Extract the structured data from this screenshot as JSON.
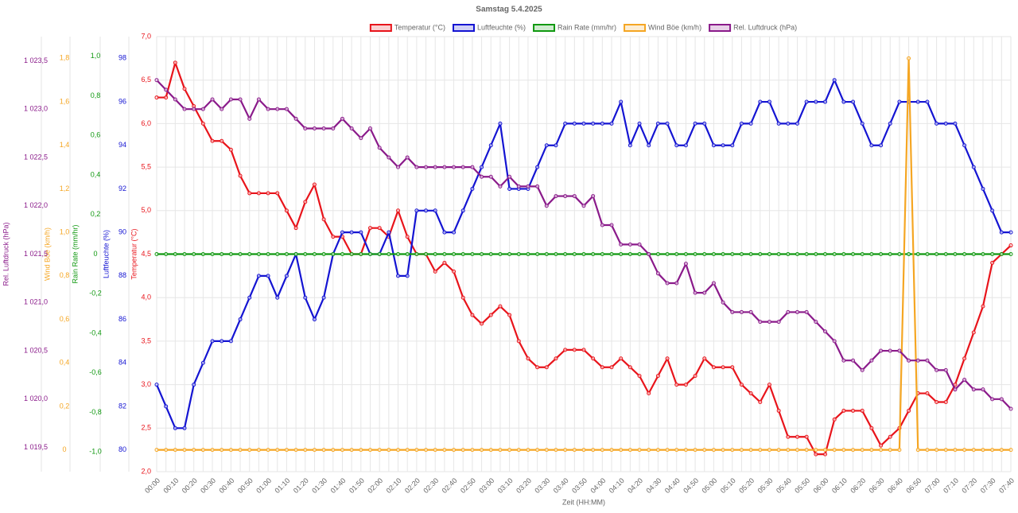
{
  "chart_data": {
    "type": "line",
    "title": "Samstag 5.4.2025",
    "xlabel": "Zeit (HH:MM)",
    "grid": true,
    "categories": [
      "00:00",
      null,
      "00:10",
      null,
      "00:20",
      null,
      "00:30",
      null,
      "00:40",
      null,
      "00:50",
      null,
      "01:00",
      null,
      "01:10",
      null,
      "01:20",
      null,
      "01:30",
      null,
      "01:40",
      null,
      "01:50",
      null,
      "02:00",
      null,
      "02:10",
      null,
      "02:20",
      null,
      "02:30",
      null,
      "02:40",
      null,
      "02:50",
      null,
      "03:00",
      null,
      "03:10",
      null,
      "03:20",
      null,
      "03:30",
      null,
      "03:40",
      null,
      "03:50",
      null,
      "04:00",
      null,
      "04:10",
      null,
      "04:20",
      null,
      "04:30",
      null,
      "04:40",
      null,
      "04:50",
      null,
      "05:00",
      null,
      "05:10",
      null,
      "05:20",
      null,
      "05:30",
      null,
      "05:40",
      null,
      "05:50",
      null,
      "06:00",
      null,
      "06:10",
      null,
      "06:20",
      null,
      "06:30",
      null,
      "06:40",
      null,
      "06:50",
      null,
      "07:00",
      null,
      "07:10",
      null,
      "07:20",
      null,
      "07:30",
      null,
      "07:40"
    ],
    "axes": [
      {
        "label": "Temperatur (°C)",
        "color": "#e8141b",
        "lim": [
          2,
          7
        ],
        "ticks": [
          {
            "value": 2,
            "label": "2,0"
          },
          {
            "value": 2.5,
            "label": "2,5"
          },
          {
            "value": 3,
            "label": "3,0"
          },
          {
            "value": 3.5,
            "label": "3,5"
          },
          {
            "value": 4,
            "label": "4,0"
          },
          {
            "value": 4.5,
            "label": "4,5"
          },
          {
            "value": 5,
            "label": "5,0"
          },
          {
            "value": 5.5,
            "label": "5,5"
          },
          {
            "value": 6,
            "label": "6,0"
          },
          {
            "value": 6.5,
            "label": "6,5"
          },
          {
            "value": 7,
            "label": "7,0"
          }
        ]
      },
      {
        "label": "Luftfeuchte (%)",
        "color": "#1414d2",
        "lim": [
          79,
          99
        ],
        "ticks": [
          80,
          82,
          84,
          86,
          88,
          90,
          92,
          94,
          96,
          98
        ]
      },
      {
        "label": "Rain Rate (mm/hr)",
        "color": "#119911",
        "lim": [
          -1.1,
          1.1
        ],
        "ticks": [
          {
            "value": -1,
            "label": "-1,0"
          },
          {
            "value": -0.8,
            "label": "-0,8"
          },
          {
            "value": -0.6,
            "label": "-0,6"
          },
          {
            "value": -0.4,
            "label": "-0,4"
          },
          {
            "value": -0.2,
            "label": "-0,2"
          },
          0,
          {
            "value": 0.2,
            "label": "0,2"
          },
          {
            "value": 0.4,
            "label": "0,4"
          },
          {
            "value": 0.6,
            "label": "0,6"
          },
          {
            "value": 0.8,
            "label": "0,8"
          },
          {
            "value": 1,
            "label": "1,0"
          }
        ]
      },
      {
        "label": "Wind Böe (km/h)",
        "color": "#f5a623",
        "lim": [
          -0.1,
          1.9
        ],
        "ticks": [
          0,
          {
            "value": 0.2,
            "label": "0,2"
          },
          {
            "value": 0.4,
            "label": "0,4"
          },
          {
            "value": 0.6,
            "label": "0,6"
          },
          {
            "value": 0.8,
            "label": "0,8"
          },
          {
            "value": 1,
            "label": "1,0"
          },
          {
            "value": 1.2,
            "label": "1,2"
          },
          {
            "value": 1.4,
            "label": "1,4"
          },
          {
            "value": 1.6,
            "label": "1,6"
          },
          {
            "value": 1.8,
            "label": "1,8"
          }
        ]
      },
      {
        "label": "Rel. Luftdruck (hPa)",
        "color": "#8a1a8a",
        "lim": [
          1019.25,
          1023.75
        ],
        "ticks": [
          {
            "value": 1019.5,
            "label": "1 019,5"
          },
          {
            "value": 1020,
            "label": "1 020,0"
          },
          {
            "value": 1020.5,
            "label": "1 020,5"
          },
          {
            "value": 1021,
            "label": "1 021,0"
          },
          {
            "value": 1021.5,
            "label": "1 021,5"
          },
          {
            "value": 1022,
            "label": "1 022,0"
          },
          {
            "value": 1022.5,
            "label": "1 022,5"
          },
          {
            "value": 1023,
            "label": "1 023,0"
          },
          {
            "value": 1023.5,
            "label": "1 023,5"
          }
        ]
      }
    ],
    "series": [
      {
        "name": "Temperatur (°C)",
        "color": "#e8141b",
        "axis": 0,
        "values": [
          6.3,
          6.3,
          6.7,
          6.4,
          6.2,
          6.0,
          5.8,
          5.8,
          5.7,
          5.4,
          5.2,
          5.2,
          5.2,
          5.2,
          5.0,
          4.8,
          5.1,
          5.3,
          4.9,
          4.7,
          4.7,
          4.5,
          4.5,
          4.8,
          4.8,
          4.7,
          5.0,
          4.7,
          4.5,
          4.5,
          4.3,
          4.4,
          4.3,
          4.0,
          3.8,
          3.7,
          3.8,
          3.9,
          3.8,
          3.5,
          3.3,
          3.2,
          3.2,
          3.3,
          3.4,
          3.4,
          3.4,
          3.3,
          3.2,
          3.2,
          3.3,
          3.2,
          3.1,
          2.9,
          3.1,
          3.3,
          3.0,
          3.0,
          3.1,
          3.3,
          3.2,
          3.2,
          3.2,
          3.0,
          2.9,
          2.8,
          3.0,
          2.7,
          2.4,
          2.4,
          2.4,
          2.2,
          2.2,
          2.6,
          2.7,
          2.7,
          2.7,
          2.5,
          2.3,
          2.4,
          2.5,
          2.7,
          2.9,
          2.9,
          2.8,
          2.8,
          3.0,
          3.3,
          3.6,
          3.9,
          4.4,
          4.5,
          4.6
        ]
      },
      {
        "name": "Luftfeuchte (%)",
        "color": "#1414d2",
        "axis": 1,
        "values": [
          83,
          82,
          81,
          81,
          83,
          84,
          85,
          85,
          85,
          86,
          87,
          88,
          88,
          87,
          88,
          89,
          87,
          86,
          87,
          89,
          90,
          90,
          90,
          89,
          89,
          90,
          88,
          88,
          91,
          91,
          91,
          90,
          90,
          91,
          92,
          93,
          94,
          95,
          92,
          92,
          92,
          93,
          94,
          94,
          95,
          95,
          95,
          95,
          95,
          95,
          96,
          94,
          95,
          94,
          95,
          95,
          94,
          94,
          95,
          95,
          94,
          94,
          94,
          95,
          95,
          96,
          96,
          95,
          95,
          95,
          96,
          96,
          96,
          97,
          96,
          96,
          95,
          94,
          94,
          95,
          96,
          96,
          96,
          96,
          95,
          95,
          95,
          94,
          93,
          92,
          91,
          90,
          90
        ]
      },
      {
        "name": "Rain Rate (mm/hr)",
        "color": "#119911",
        "axis": 2,
        "values": [
          0,
          0,
          0,
          0,
          0,
          0,
          0,
          0,
          0,
          0,
          0,
          0,
          0,
          0,
          0,
          0,
          0,
          0,
          0,
          0,
          0,
          0,
          0,
          0,
          0,
          0,
          0,
          0,
          0,
          0,
          0,
          0,
          0,
          0,
          0,
          0,
          0,
          0,
          0,
          0,
          0,
          0,
          0,
          0,
          0,
          0,
          0,
          0,
          0,
          0,
          0,
          0,
          0,
          0,
          0,
          0,
          0,
          0,
          0,
          0,
          0,
          0,
          0,
          0,
          0,
          0,
          0,
          0,
          0,
          0,
          0,
          0,
          0,
          0,
          0,
          0,
          0,
          0,
          0,
          0,
          0,
          0,
          0,
          0,
          0,
          0,
          0,
          0,
          0,
          0,
          0,
          0,
          0
        ]
      },
      {
        "name": "Wind Böe (km/h)",
        "color": "#f5a623",
        "axis": 3,
        "values": [
          0,
          0,
          0,
          0,
          0,
          0,
          0,
          0,
          0,
          0,
          0,
          0,
          0,
          0,
          0,
          0,
          0,
          0,
          0,
          0,
          0,
          0,
          0,
          0,
          0,
          0,
          0,
          0,
          0,
          0,
          0,
          0,
          0,
          0,
          0,
          0,
          0,
          0,
          0,
          0,
          0,
          0,
          0,
          0,
          0,
          0,
          0,
          0,
          0,
          0,
          0,
          0,
          0,
          0,
          0,
          0,
          0,
          0,
          0,
          0,
          0,
          0,
          0,
          0,
          0,
          0,
          0,
          0,
          0,
          0,
          0,
          0,
          0,
          0,
          0,
          0,
          0,
          0,
          0,
          0,
          0,
          1.8,
          0,
          0,
          0,
          0,
          0,
          0,
          0,
          0,
          0,
          0,
          0
        ]
      },
      {
        "name": "Rel. Luftdruck (hPa)",
        "color": "#8a1a8a",
        "axis": 4,
        "values": [
          1023.3,
          1023.2,
          1023.1,
          1023.0,
          1023.0,
          1023.0,
          1023.1,
          1023.0,
          1023.1,
          1023.1,
          1022.9,
          1023.1,
          1023.0,
          1023.0,
          1023.0,
          1022.9,
          1022.8,
          1022.8,
          1022.8,
          1022.8,
          1022.9,
          1022.8,
          1022.7,
          1022.8,
          1022.6,
          1022.5,
          1022.4,
          1022.5,
          1022.4,
          1022.4,
          1022.4,
          1022.4,
          1022.4,
          1022.4,
          1022.4,
          1022.3,
          1022.3,
          1022.2,
          1022.3,
          1022.2,
          1022.2,
          1022.2,
          1022.0,
          1022.1,
          1022.1,
          1022.1,
          1022.0,
          1022.1,
          1021.8,
          1021.8,
          1021.6,
          1021.6,
          1021.6,
          1021.5,
          1021.3,
          1021.2,
          1021.2,
          1021.4,
          1021.1,
          1021.1,
          1021.2,
          1021.0,
          1020.9,
          1020.9,
          1020.9,
          1020.8,
          1020.8,
          1020.8,
          1020.9,
          1020.9,
          1020.9,
          1020.8,
          1020.7,
          1020.6,
          1020.4,
          1020.4,
          1020.3,
          1020.4,
          1020.5,
          1020.5,
          1020.5,
          1020.4,
          1020.4,
          1020.4,
          1020.3,
          1020.3,
          1020.1,
          1020.2,
          1020.1,
          1020.1,
          1020.0,
          1020.0,
          1019.9
        ]
      }
    ]
  }
}
